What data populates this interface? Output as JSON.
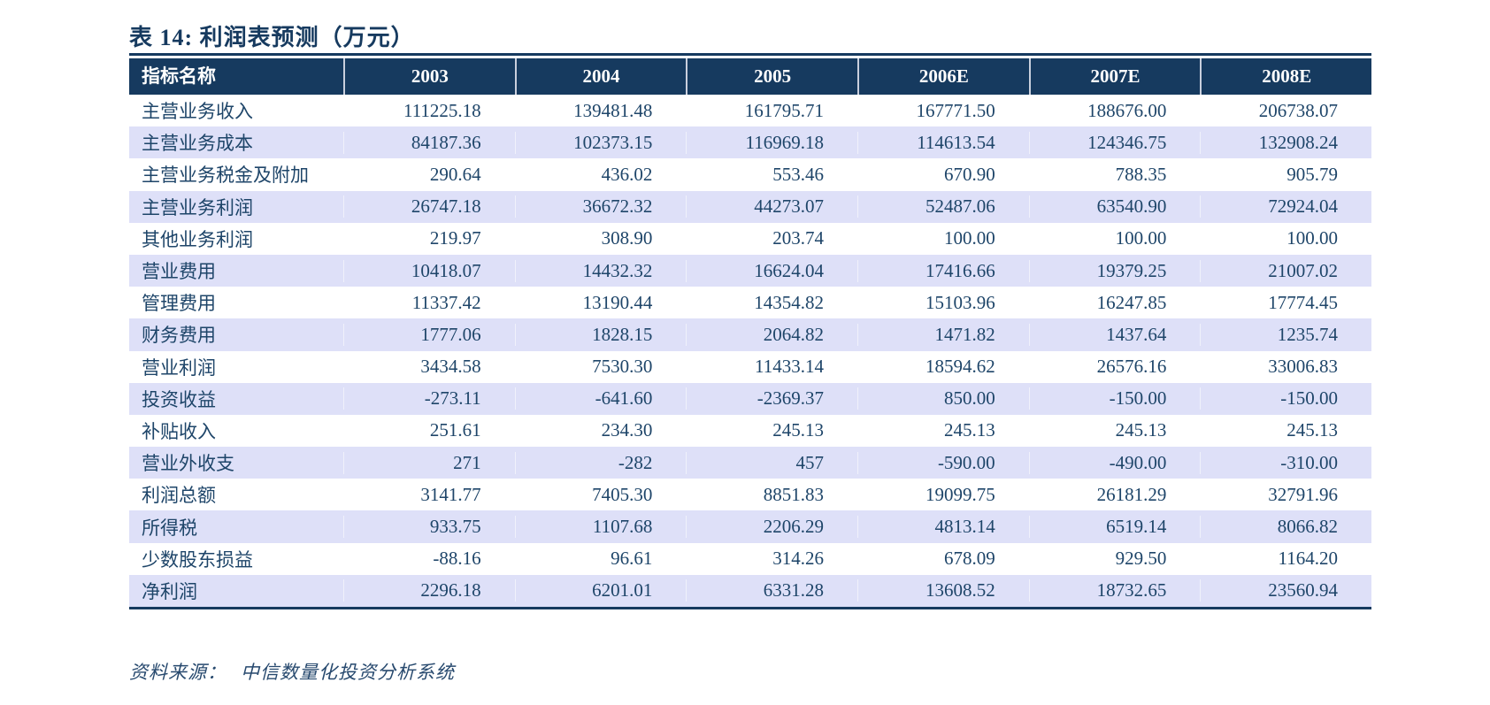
{
  "title": "表 14:  利润表预测（万元）",
  "table": {
    "columns": [
      "指标名称",
      "2003",
      "2004",
      "2005",
      "2006E",
      "2007E",
      "2008E"
    ],
    "rows": [
      {
        "label": "主营业务收入",
        "values": [
          "111225.18",
          "139481.48",
          "161795.71",
          "167771.50",
          "188676.00",
          "206738.07"
        ]
      },
      {
        "label": "主营业务成本",
        "values": [
          "84187.36",
          "102373.15",
          "116969.18",
          "114613.54",
          "124346.75",
          "132908.24"
        ]
      },
      {
        "label": "主营业务税金及附加",
        "values": [
          "290.64",
          "436.02",
          "553.46",
          "670.90",
          "788.35",
          "905.79"
        ]
      },
      {
        "label": "主营业务利润",
        "values": [
          "26747.18",
          "36672.32",
          "44273.07",
          "52487.06",
          "63540.90",
          "72924.04"
        ]
      },
      {
        "label": "其他业务利润",
        "values": [
          "219.97",
          "308.90",
          "203.74",
          "100.00",
          "100.00",
          "100.00"
        ]
      },
      {
        "label": "营业费用",
        "values": [
          "10418.07",
          "14432.32",
          "16624.04",
          "17416.66",
          "19379.25",
          "21007.02"
        ]
      },
      {
        "label": "管理费用",
        "values": [
          "11337.42",
          "13190.44",
          "14354.82",
          "15103.96",
          "16247.85",
          "17774.45"
        ]
      },
      {
        "label": "财务费用",
        "values": [
          "1777.06",
          "1828.15",
          "2064.82",
          "1471.82",
          "1437.64",
          "1235.74"
        ]
      },
      {
        "label": "营业利润",
        "values": [
          "3434.58",
          "7530.30",
          "11433.14",
          "18594.62",
          "26576.16",
          "33006.83"
        ]
      },
      {
        "label": "投资收益",
        "values": [
          "-273.11",
          "-641.60",
          "-2369.37",
          "850.00",
          "-150.00",
          "-150.00"
        ]
      },
      {
        "label": "补贴收入",
        "values": [
          "251.61",
          "234.30",
          "245.13",
          "245.13",
          "245.13",
          "245.13"
        ]
      },
      {
        "label": "营业外收支",
        "values": [
          "271",
          "-282",
          "457",
          "-590.00",
          "-490.00",
          "-310.00"
        ]
      },
      {
        "label": "利润总额",
        "values": [
          "3141.77",
          "7405.30",
          "8851.83",
          "19099.75",
          "26181.29",
          "32791.96"
        ]
      },
      {
        "label": "所得税",
        "values": [
          "933.75",
          "1107.68",
          "2206.29",
          "4813.14",
          "6519.14",
          "8066.82"
        ]
      },
      {
        "label": "少数股东损益",
        "values": [
          "-88.16",
          "96.61",
          "314.26",
          "678.09",
          "929.50",
          "1164.20"
        ]
      },
      {
        "label": "净利润",
        "values": [
          "2296.18",
          "6201.01",
          "6331.28",
          "13608.52",
          "18732.65",
          "23560.94"
        ]
      }
    ]
  },
  "source": {
    "label": "资料来源：",
    "value": "中信数量化投资分析系统"
  },
  "colors": {
    "header_bg": "#163A5F",
    "stripe_bg": "#DEE0F8",
    "text": "#1E4569",
    "rule": "#163A5F"
  }
}
